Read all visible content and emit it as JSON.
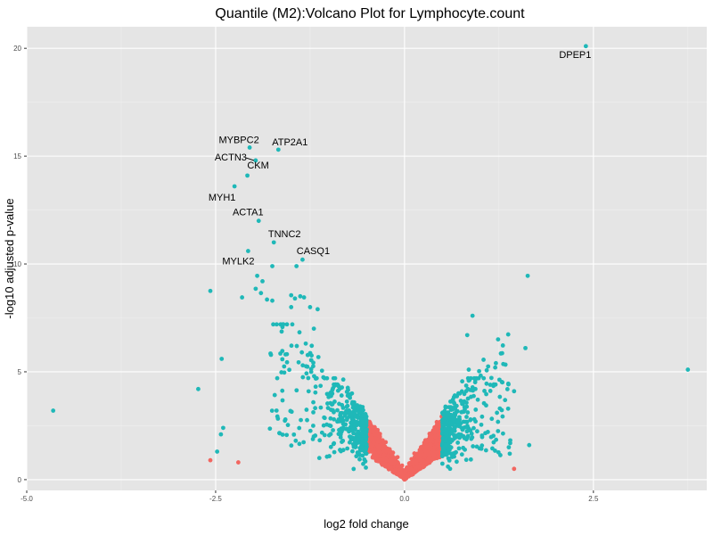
{
  "chart_data": {
    "type": "scatter",
    "title": "Quantile (M2):Volcano Plot for Lymphocyte.count",
    "xlabel": "log2 fold change",
    "ylabel": "-log10 adjusted p-value",
    "xlim": [
      -5.0,
      4.0
    ],
    "ylim": [
      -0.5,
      21.0
    ],
    "x_ticks": [
      -5.0,
      -2.5,
      0.0,
      2.5
    ],
    "x_tick_labels": [
      "-5.0",
      "-2.5",
      "0.0",
      "2.5"
    ],
    "y_ticks": [
      0,
      5,
      10,
      15,
      20
    ],
    "y_tick_labels": [
      "0",
      "5",
      "10",
      "15",
      "20"
    ],
    "grid": true,
    "legend": "none",
    "colors": {
      "significant": "#1fb8b8",
      "not_significant": "#f26660",
      "panel_background": "#e5e5e5",
      "grid_major": "#ffffff",
      "grid_minor": "#f0f0f0"
    },
    "thresholds": {
      "fold_change_abs": 0.5,
      "p_adjusted_log10": 1.3
    },
    "labeled_points": [
      {
        "gene": "DPEP1",
        "x": 2.4,
        "y": 20.1
      },
      {
        "gene": "MYBPC2",
        "x": -2.05,
        "y": 15.4
      },
      {
        "gene": "ATP2A1",
        "x": -1.67,
        "y": 15.3
      },
      {
        "gene": "ACTN3",
        "x": -1.97,
        "y": 14.8
      },
      {
        "gene": "CKM",
        "x": -2.08,
        "y": 14.1
      },
      {
        "gene": "MYH1",
        "x": -2.25,
        "y": 13.6
      },
      {
        "gene": "ACTA1",
        "x": -1.93,
        "y": 12.0
      },
      {
        "gene": "TNNC2",
        "x": -1.73,
        "y": 11.0
      },
      {
        "gene": "CASQ1",
        "x": -1.35,
        "y": 10.2
      },
      {
        "gene": "MYLK2",
        "x": -2.07,
        "y": 10.6
      }
    ],
    "highlighted_points": [
      {
        "x": -4.65,
        "y": 3.2,
        "significant": true
      },
      {
        "x": -2.57,
        "y": 8.75,
        "significant": true
      },
      {
        "x": -2.73,
        "y": 4.2,
        "significant": true
      },
      {
        "x": -2.42,
        "y": 5.6,
        "significant": true
      },
      {
        "x": -2.43,
        "y": 2.1,
        "significant": true
      },
      {
        "x": -2.4,
        "y": 2.4,
        "significant": true
      },
      {
        "x": -2.48,
        "y": 1.3,
        "significant": true
      },
      {
        "x": -2.57,
        "y": 0.9,
        "significant": false
      },
      {
        "x": -2.2,
        "y": 0.8,
        "significant": false
      },
      {
        "x": -1.95,
        "y": 9.45,
        "significant": true
      },
      {
        "x": -1.88,
        "y": 9.2,
        "significant": true
      },
      {
        "x": -1.9,
        "y": 8.65,
        "significant": true
      },
      {
        "x": -1.97,
        "y": 8.85,
        "significant": true
      },
      {
        "x": -1.82,
        "y": 8.35,
        "significant": true
      },
      {
        "x": -1.75,
        "y": 8.3,
        "significant": true
      },
      {
        "x": -2.15,
        "y": 8.45,
        "significant": true
      },
      {
        "x": -1.5,
        "y": 8.55,
        "significant": true
      },
      {
        "x": -1.45,
        "y": 8.4,
        "significant": true
      },
      {
        "x": -1.38,
        "y": 8.5,
        "significant": true
      },
      {
        "x": -1.33,
        "y": 8.45,
        "significant": true
      },
      {
        "x": -1.5,
        "y": 8.0,
        "significant": true
      },
      {
        "x": -1.25,
        "y": 8.0,
        "significant": true
      },
      {
        "x": -1.15,
        "y": 7.9,
        "significant": true
      },
      {
        "x": -1.43,
        "y": 9.9,
        "significant": true
      },
      {
        "x": -1.75,
        "y": 9.9,
        "significant": true
      },
      {
        "x": -1.2,
        "y": 7.0,
        "significant": true
      },
      {
        "x": 1.63,
        "y": 9.45,
        "significant": true
      },
      {
        "x": 0.9,
        "y": 7.6,
        "significant": true
      },
      {
        "x": 0.83,
        "y": 6.7,
        "significant": true
      },
      {
        "x": 1.6,
        "y": 6.1,
        "significant": true
      },
      {
        "x": 3.75,
        "y": 5.1,
        "significant": true
      },
      {
        "x": 0.85,
        "y": 5.1,
        "significant": true
      },
      {
        "x": 1.2,
        "y": 5.2,
        "significant": true
      },
      {
        "x": 1.45,
        "y": 4.1,
        "significant": true
      },
      {
        "x": 1.65,
        "y": 1.6,
        "significant": true
      },
      {
        "x": 1.38,
        "y": 1.5,
        "significant": true
      },
      {
        "x": 1.45,
        "y": 0.5,
        "significant": false
      }
    ],
    "cloud_note": "Dense cloud of several thousand genes near x in [-1.5, 1.5], y in [0, 5]; teal for |log2FC| > 0.5, coral otherwise."
  }
}
